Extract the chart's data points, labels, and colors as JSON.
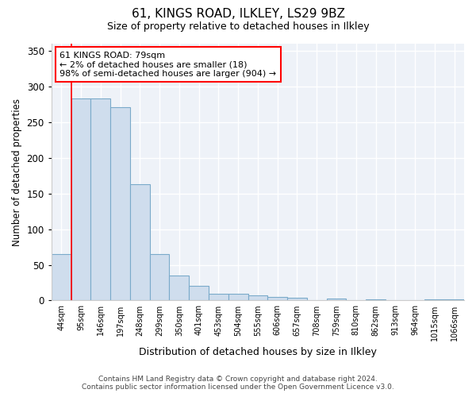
{
  "title1": "61, KINGS ROAD, ILKLEY, LS29 9BZ",
  "title2": "Size of property relative to detached houses in Ilkley",
  "xlabel": "Distribution of detached houses by size in Ilkley",
  "ylabel": "Number of detached properties",
  "categories": [
    "44sqm",
    "95sqm",
    "146sqm",
    "197sqm",
    "248sqm",
    "299sqm",
    "350sqm",
    "401sqm",
    "453sqm",
    "504sqm",
    "555sqm",
    "606sqm",
    "657sqm",
    "708sqm",
    "759sqm",
    "810sqm",
    "862sqm",
    "913sqm",
    "964sqm",
    "1015sqm",
    "1066sqm"
  ],
  "values": [
    65,
    283,
    283,
    271,
    163,
    65,
    35,
    20,
    9,
    9,
    7,
    5,
    4,
    0,
    3,
    0,
    2,
    0,
    0,
    2,
    2
  ],
  "bar_color": "#cfdded",
  "bar_edge_color": "#7aaaca",
  "annotation_text_line1": "61 KINGS ROAD: 79sqm",
  "annotation_text_line2": "← 2% of detached houses are smaller (18)",
  "annotation_text_line3": "98% of semi-detached houses are larger (904) →",
  "redline_x": 0.5,
  "ylim": [
    0,
    360
  ],
  "yticks": [
    0,
    50,
    100,
    150,
    200,
    250,
    300,
    350
  ],
  "footer1": "Contains HM Land Registry data © Crown copyright and database right 2024.",
  "footer2": "Contains public sector information licensed under the Open Government Licence v3.0.",
  "background_color": "#ffffff",
  "plot_bg_color": "#eef2f8",
  "grid_color": "#ffffff"
}
